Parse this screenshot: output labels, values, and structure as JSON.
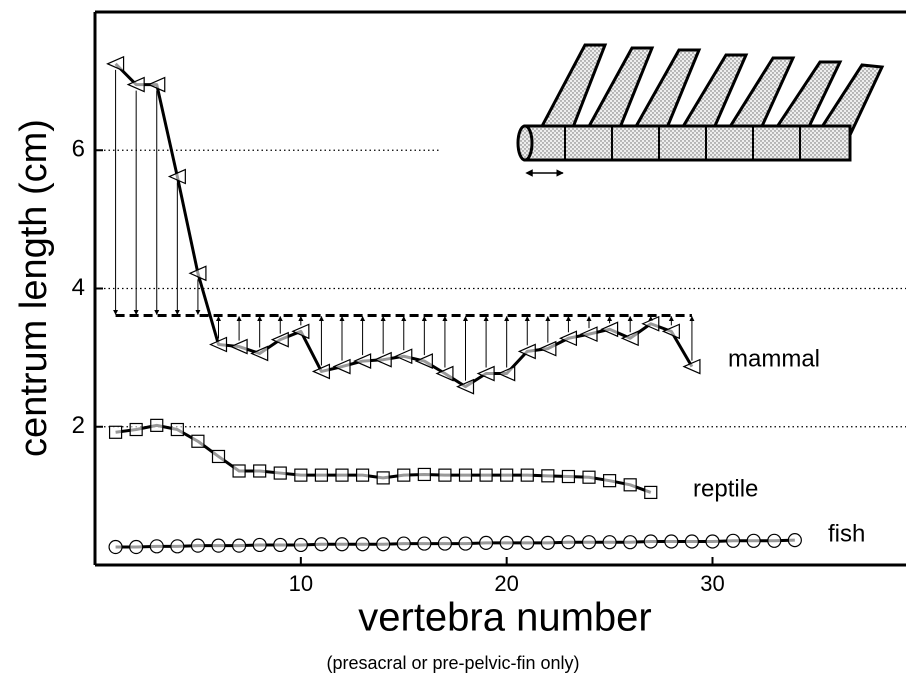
{
  "chart_data": {
    "type": "line",
    "xlabel": "vertebra number",
    "subtitle": "(presacral or pre-pelvic-fin only)",
    "ylabel": "centrum length (cm)",
    "xlim": [
      0,
      39.4
    ],
    "ylim": [
      0,
      8
    ],
    "xticks": [
      10,
      20,
      30
    ],
    "yticks": [
      2,
      4,
      6
    ],
    "grid": true,
    "reference_line": 3.61,
    "series": [
      {
        "name": "mammal",
        "color": "#000000",
        "marker": "triangle",
        "x": [
          1,
          2,
          3,
          4,
          5,
          6,
          7,
          8,
          9,
          10,
          11,
          12,
          13,
          14,
          15,
          16,
          17,
          18,
          19,
          20,
          21,
          22,
          23,
          24,
          25,
          26,
          27,
          28,
          29
        ],
        "values": [
          7.25,
          6.95,
          6.95,
          5.62,
          4.22,
          3.19,
          3.16,
          3.06,
          3.26,
          3.38,
          2.8,
          2.87,
          2.95,
          2.97,
          3.02,
          2.95,
          2.77,
          2.58,
          2.77,
          2.77,
          3.09,
          3.13,
          3.28,
          3.34,
          3.41,
          3.28,
          3.49,
          3.38,
          2.87
        ]
      },
      {
        "name": "reptile",
        "color": "#000000",
        "marker": "square",
        "x": [
          1,
          2,
          3,
          4,
          5,
          6,
          7,
          8,
          9,
          10,
          11,
          12,
          13,
          14,
          15,
          16,
          17,
          18,
          19,
          20,
          21,
          22,
          23,
          24,
          25,
          26,
          27
        ],
        "values": [
          1.92,
          1.96,
          2.02,
          1.96,
          1.79,
          1.57,
          1.36,
          1.36,
          1.33,
          1.3,
          1.3,
          1.3,
          1.3,
          1.26,
          1.3,
          1.31,
          1.3,
          1.3,
          1.3,
          1.3,
          1.3,
          1.29,
          1.28,
          1.27,
          1.22,
          1.16,
          1.05
        ]
      },
      {
        "name": "fish",
        "color": "#000000",
        "marker": "circle",
        "x": [
          1,
          2,
          3,
          4,
          5,
          6,
          7,
          8,
          9,
          10,
          11,
          12,
          13,
          14,
          15,
          16,
          17,
          18,
          19,
          20,
          21,
          22,
          23,
          24,
          25,
          26,
          27,
          28,
          29,
          30,
          31,
          32,
          33,
          34
        ],
        "values": [
          0.26,
          0.26,
          0.27,
          0.27,
          0.28,
          0.28,
          0.28,
          0.29,
          0.29,
          0.29,
          0.3,
          0.3,
          0.3,
          0.3,
          0.31,
          0.31,
          0.31,
          0.31,
          0.32,
          0.32,
          0.32,
          0.32,
          0.33,
          0.33,
          0.33,
          0.33,
          0.34,
          0.34,
          0.34,
          0.34,
          0.35,
          0.35,
          0.35,
          0.36
        ]
      }
    ]
  }
}
